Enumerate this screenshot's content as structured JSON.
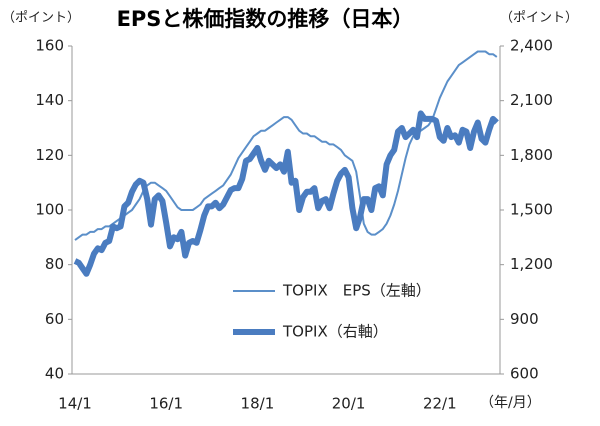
{
  "chart_data": {
    "type": "line",
    "title": "EPSと株価指数の推移（日本）",
    "y_unit": "（ポイント）",
    "y2_unit": "（ポイント）",
    "x_unit": "（年/月）",
    "categories": [
      "14/1",
      null,
      null,
      null,
      null,
      null,
      null,
      null,
      null,
      null,
      null,
      null,
      null,
      null,
      null,
      null,
      null,
      null,
      null,
      null,
      null,
      null,
      null,
      null,
      "16/1",
      null,
      null,
      null,
      null,
      null,
      null,
      null,
      null,
      null,
      null,
      null,
      null,
      null,
      null,
      null,
      null,
      null,
      null,
      null,
      null,
      null,
      null,
      null,
      "18/1",
      null,
      null,
      null,
      null,
      null,
      null,
      null,
      null,
      null,
      null,
      null,
      null,
      null,
      null,
      null,
      null,
      null,
      null,
      null,
      null,
      null,
      null,
      null,
      "20/1",
      null,
      null,
      null,
      null,
      null,
      null,
      null,
      null,
      null,
      null,
      null,
      null,
      null,
      null,
      null,
      null,
      null,
      null,
      null,
      null,
      null,
      null,
      null,
      "22/1",
      null,
      null,
      null,
      null,
      null,
      null,
      null,
      null,
      null,
      null,
      null,
      null,
      null,
      null,
      null
    ],
    "series": [
      {
        "name": "TOPIX　EPS（左軸）",
        "color": "#5b8fc9",
        "width": 2,
        "axis": "y",
        "values": [
          89,
          90,
          91,
          91,
          92,
          92,
          93,
          93,
          94,
          94,
          95,
          96,
          97,
          98,
          99,
          100,
          102,
          104,
          107,
          109,
          110,
          110,
          109,
          108,
          107,
          105,
          103,
          101,
          100,
          100,
          100,
          100,
          101,
          102,
          104,
          105,
          106,
          107,
          108,
          109,
          111,
          113,
          116,
          119,
          121,
          123,
          125,
          127,
          128,
          129,
          129,
          130,
          131,
          132,
          133,
          134,
          134,
          133,
          131,
          129,
          128,
          128,
          127,
          127,
          126,
          125,
          125,
          124,
          124,
          123,
          122,
          120,
          119,
          118,
          114,
          105,
          95,
          92,
          91,
          91,
          92,
          93,
          95,
          98,
          102,
          107,
          113,
          119,
          124,
          127,
          128,
          129,
          130,
          131,
          133,
          137,
          141,
          144,
          147,
          149,
          151,
          153,
          154,
          155,
          156,
          157,
          158,
          158,
          158,
          157,
          157,
          156
        ]
      },
      {
        "name": "TOPIX（右軸）",
        "color": "#4a7cc0",
        "width": 6,
        "axis": "y2",
        "values": [
          1220,
          1210,
          1180,
          1150,
          1200,
          1260,
          1290,
          1280,
          1320,
          1330,
          1410,
          1400,
          1410,
          1520,
          1540,
          1600,
          1640,
          1660,
          1650,
          1560,
          1420,
          1560,
          1580,
          1550,
          1430,
          1300,
          1350,
          1340,
          1380,
          1250,
          1320,
          1330,
          1320,
          1390,
          1470,
          1520,
          1520,
          1540,
          1510,
          1530,
          1570,
          1610,
          1620,
          1620,
          1670,
          1770,
          1780,
          1810,
          1840,
          1770,
          1720,
          1770,
          1750,
          1730,
          1750,
          1710,
          1820,
          1650,
          1660,
          1500,
          1570,
          1600,
          1600,
          1620,
          1510,
          1550,
          1560,
          1510,
          1590,
          1660,
          1700,
          1720,
          1680,
          1510,
          1400,
          1460,
          1560,
          1560,
          1500,
          1620,
          1630,
          1580,
          1750,
          1800,
          1830,
          1930,
          1950,
          1900,
          1920,
          1940,
          1900,
          2030,
          2000,
          2000,
          2000,
          1990,
          1900,
          1880,
          1950,
          1900,
          1910,
          1870,
          1940,
          1930,
          1840,
          1930,
          1980,
          1890,
          1870,
          1940,
          2000,
          1980
        ]
      }
    ],
    "ylim": [
      40,
      160
    ],
    "yticks": [
      40,
      60,
      80,
      100,
      120,
      140,
      160
    ],
    "y2lim": [
      600,
      2400
    ],
    "y2ticks": [
      600,
      {
        "value": 900,
        "label": "900"
      },
      {
        "value": 1200,
        "label": "1,200"
      },
      {
        "value": 1500,
        "label": "1,500"
      },
      {
        "value": 1800,
        "label": "1,800"
      },
      {
        "value": 2100,
        "label": "2,100"
      },
      {
        "value": 2400,
        "label": "2,400"
      }
    ],
    "grid": false
  }
}
